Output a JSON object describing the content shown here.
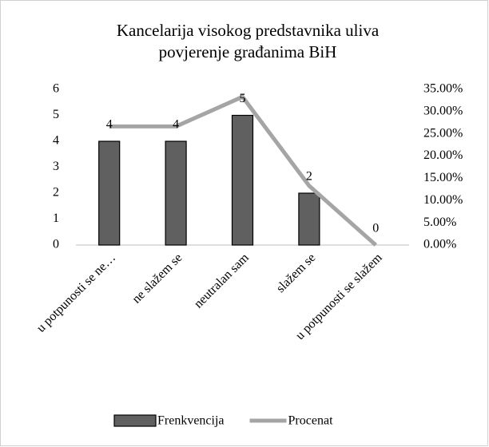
{
  "chart_data": {
    "type": "bar-line",
    "title": [
      "Kancelarija visokog predstavnika  uliva",
      "povjerenje građanima BiH"
    ],
    "categories": [
      "u potpunosti se ne…",
      "ne slažem se",
      "neutralan sam",
      "slažem se",
      "u potpunosti se slažem"
    ],
    "series": [
      {
        "name": "Frenkvencija",
        "type": "bar",
        "color": "#606060",
        "values": [
          4,
          4,
          5,
          2,
          0
        ]
      },
      {
        "name": "Procenat",
        "type": "line",
        "axis": "y2",
        "color": "#a5a5a5",
        "values": [
          26.67,
          26.67,
          33.33,
          13.33,
          0
        ]
      }
    ],
    "ylim": [
      0,
      6
    ],
    "yticks": [
      0,
      1,
      2,
      3,
      4,
      5,
      6
    ],
    "y2lim": [
      0,
      35
    ],
    "y2ticks": [
      {
        "value": 0,
        "label": "0.00%"
      },
      {
        "value": 5,
        "label": "5.00%"
      },
      {
        "value": 10,
        "label": "10.00%"
      },
      {
        "value": 15,
        "label": "15.00%"
      },
      {
        "value": 20,
        "label": "20.00%"
      },
      {
        "value": 25,
        "label": "25.00%"
      },
      {
        "value": 30,
        "label": "30.00%"
      },
      {
        "value": 35,
        "label": "35.00%"
      }
    ],
    "grid": false,
    "legend": "bottom"
  }
}
